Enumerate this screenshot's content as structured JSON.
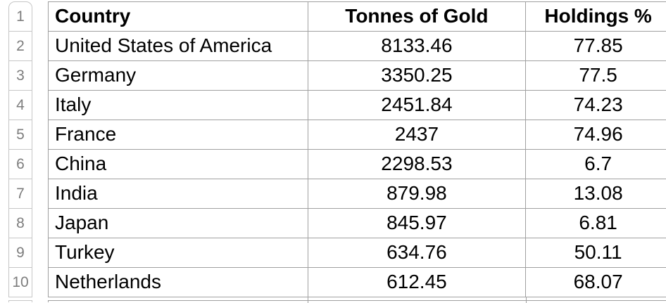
{
  "spreadsheet": {
    "gutter": {
      "row_numbers": [
        "1",
        "2",
        "3",
        "4",
        "5",
        "6",
        "7",
        "8",
        "9",
        "10"
      ]
    },
    "table": {
      "headers": {
        "country": "Country",
        "tonnes": "Tonnes of Gold",
        "holdings": "Holdings %"
      },
      "rows": [
        {
          "country": "United States of America",
          "tonnes": "8133.46",
          "holdings": "77.85"
        },
        {
          "country": "Germany",
          "tonnes": "3350.25",
          "holdings": "77.5"
        },
        {
          "country": "Italy",
          "tonnes": "2451.84",
          "holdings": "74.23"
        },
        {
          "country": "France",
          "tonnes": "2437",
          "holdings": "74.96"
        },
        {
          "country": "China",
          "tonnes": "2298.53",
          "holdings": "6.7"
        },
        {
          "country": "India",
          "tonnes": "879.98",
          "holdings": "13.08"
        },
        {
          "country": "Japan",
          "tonnes": "845.97",
          "holdings": "6.81"
        },
        {
          "country": "Turkey",
          "tonnes": "634.76",
          "holdings": "50.11"
        },
        {
          "country": "Netherlands",
          "tonnes": "612.45",
          "holdings": "68.07"
        }
      ]
    },
    "colors": {
      "background": "#ffffff",
      "table_border": "#a0a0a0",
      "gutter_border": "#c6c6c6",
      "row_number_text": "#7d7d7d",
      "cell_text": "#000000"
    }
  }
}
